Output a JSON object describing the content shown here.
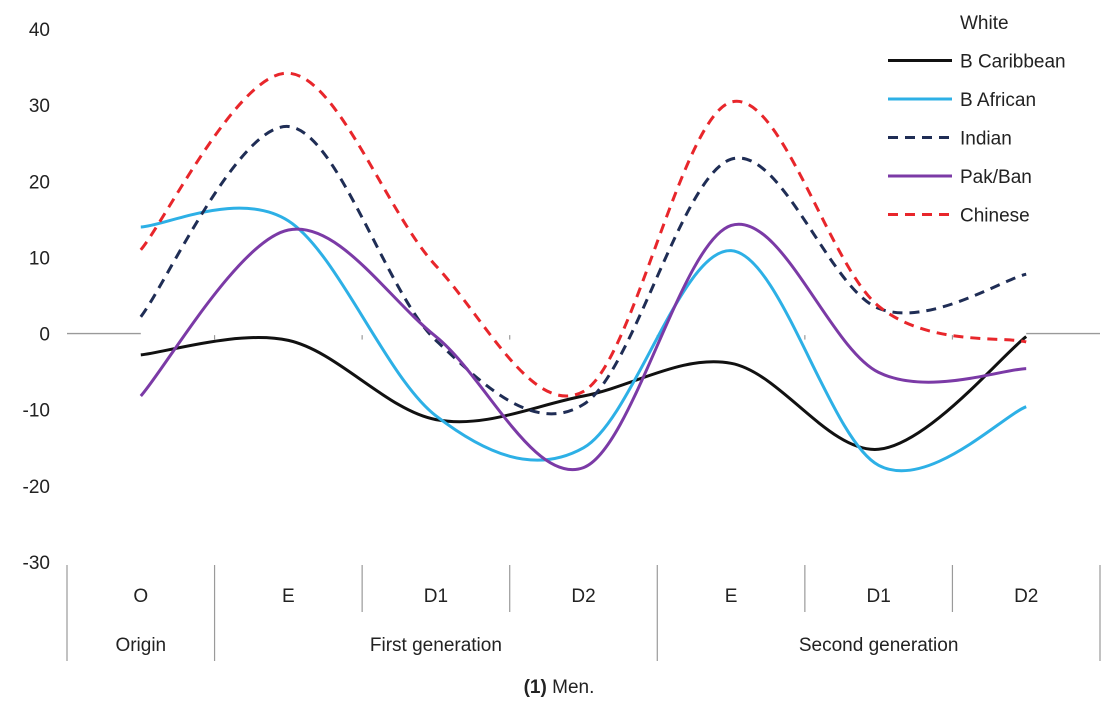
{
  "caption": {
    "bold": "(1)",
    "text": " Men."
  },
  "chart_data": {
    "type": "line",
    "ylim": [
      -30,
      40
    ],
    "yticks": [
      40,
      30,
      20,
      10,
      0,
      -10,
      -20,
      -30
    ],
    "categories": [
      "O",
      "E",
      "D1",
      "D2",
      "E",
      "D1",
      "D2"
    ],
    "groups": [
      {
        "label": "Origin",
        "span": [
          0,
          0
        ]
      },
      {
        "label": "First generation",
        "span": [
          1,
          3
        ]
      },
      {
        "label": "Second generation",
        "span": [
          4,
          6
        ]
      }
    ],
    "series": [
      {
        "name": "White",
        "color": "#ffffff",
        "dash": "solid",
        "values": [
          0,
          0,
          0,
          0,
          0,
          0,
          0
        ]
      },
      {
        "name": "B Caribbean",
        "color": "#111111",
        "dash": "solid",
        "values": [
          -2.8,
          -0.9,
          -11.3,
          -8.2,
          -3.9,
          -15.2,
          -0.4
        ]
      },
      {
        "name": "B African",
        "color": "#2db0e6",
        "dash": "solid",
        "values": [
          14.0,
          14.8,
          -10.8,
          -15.0,
          10.9,
          -17.3,
          -9.6
        ]
      },
      {
        "name": "Indian",
        "color": "#1f2d55",
        "dash": "dashed",
        "values": [
          2.2,
          27.2,
          -0.9,
          -9.3,
          22.9,
          3.3,
          7.8
        ]
      },
      {
        "name": "Pak/Ban",
        "color": "#7b3aa6",
        "dash": "solid",
        "values": [
          -8.2,
          13.6,
          -0.4,
          -17.6,
          14.2,
          -5.1,
          -4.6
        ]
      },
      {
        "name": "Chinese",
        "color": "#e8262b",
        "dash": "dashed",
        "values": [
          11.0,
          34.2,
          8.9,
          -7.6,
          30.4,
          3.6,
          -1.1
        ]
      }
    ],
    "legend_position": "top-right",
    "grid": false
  }
}
